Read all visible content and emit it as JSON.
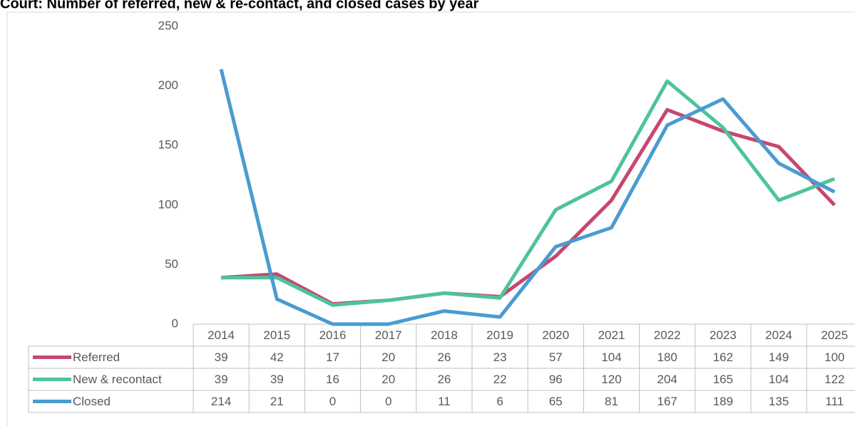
{
  "chart_data": {
    "type": "line",
    "title": "Court: Number of referred, new & re-contact, and closed cases by year",
    "categories": [
      "2014",
      "2015",
      "2016",
      "2017",
      "2018",
      "2019",
      "2020",
      "2021",
      "2022",
      "2023",
      "2024",
      "2025"
    ],
    "series": [
      {
        "name": "Referred",
        "color": "#c5486e",
        "values": [
          39,
          42,
          17,
          20,
          26,
          23,
          57,
          104,
          180,
          162,
          149,
          100
        ]
      },
      {
        "name": "New & recontact",
        "color": "#4dc49a",
        "values": [
          39,
          39,
          16,
          20,
          26,
          22,
          96,
          120,
          204,
          165,
          104,
          122
        ]
      },
      {
        "name": "Closed",
        "color": "#4a9bd1",
        "values": [
          214,
          21,
          0,
          0,
          11,
          6,
          65,
          81,
          167,
          189,
          135,
          111
        ]
      }
    ],
    "ylim": [
      0,
      250
    ],
    "yticks": [
      0,
      50,
      100,
      150,
      200,
      250
    ],
    "grid": false,
    "data_table": true
  }
}
